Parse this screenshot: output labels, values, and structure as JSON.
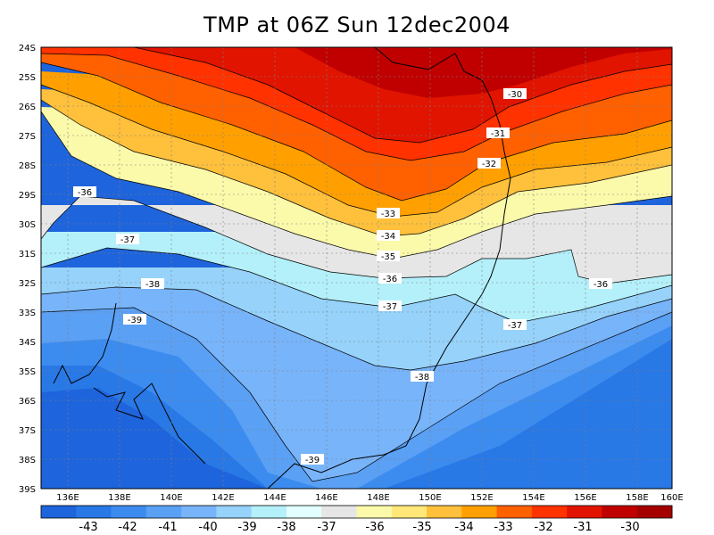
{
  "title": "TMP at 06Z Sun 12dec2004",
  "map": {
    "lat_ticks": [
      "24S",
      "25S",
      "26S",
      "27S",
      "28S",
      "29S",
      "30S",
      "31S",
      "32S",
      "33S",
      "34S",
      "35S",
      "36S",
      "37S",
      "38S",
      "39S"
    ],
    "lon_ticks": [
      "136E",
      "138E",
      "140E",
      "142E",
      "144E",
      "146E",
      "148E",
      "150E",
      "152E",
      "154E",
      "156E",
      "158E",
      "160E"
    ],
    "contour_labels": [
      "-30",
      "-31",
      "-32",
      "-33",
      "-34",
      "-35",
      "-36",
      "-37",
      "-38",
      "-39",
      "-36",
      "-37",
      "-38",
      "-39",
      "-36",
      "-37"
    ]
  },
  "colorbar": {
    "labels": [
      "-43",
      "-42",
      "-41",
      "-40",
      "-39",
      "-38",
      "-37",
      "-36",
      "-35",
      "-34",
      "-33",
      "-32",
      "-31",
      "-30"
    ],
    "colors": [
      "#1e64dc",
      "#2878e6",
      "#3c8cf0",
      "#5aa0f5",
      "#78b4fa",
      "#96d2fa",
      "#b4f0fa",
      "#e1ffff",
      "#e6e6e6",
      "#fafaaa",
      "#ffe878",
      "#ffc03c",
      "#ffa000",
      "#ff6000",
      "#ff3200",
      "#e11400",
      "#c00000",
      "#a50000"
    ]
  }
}
